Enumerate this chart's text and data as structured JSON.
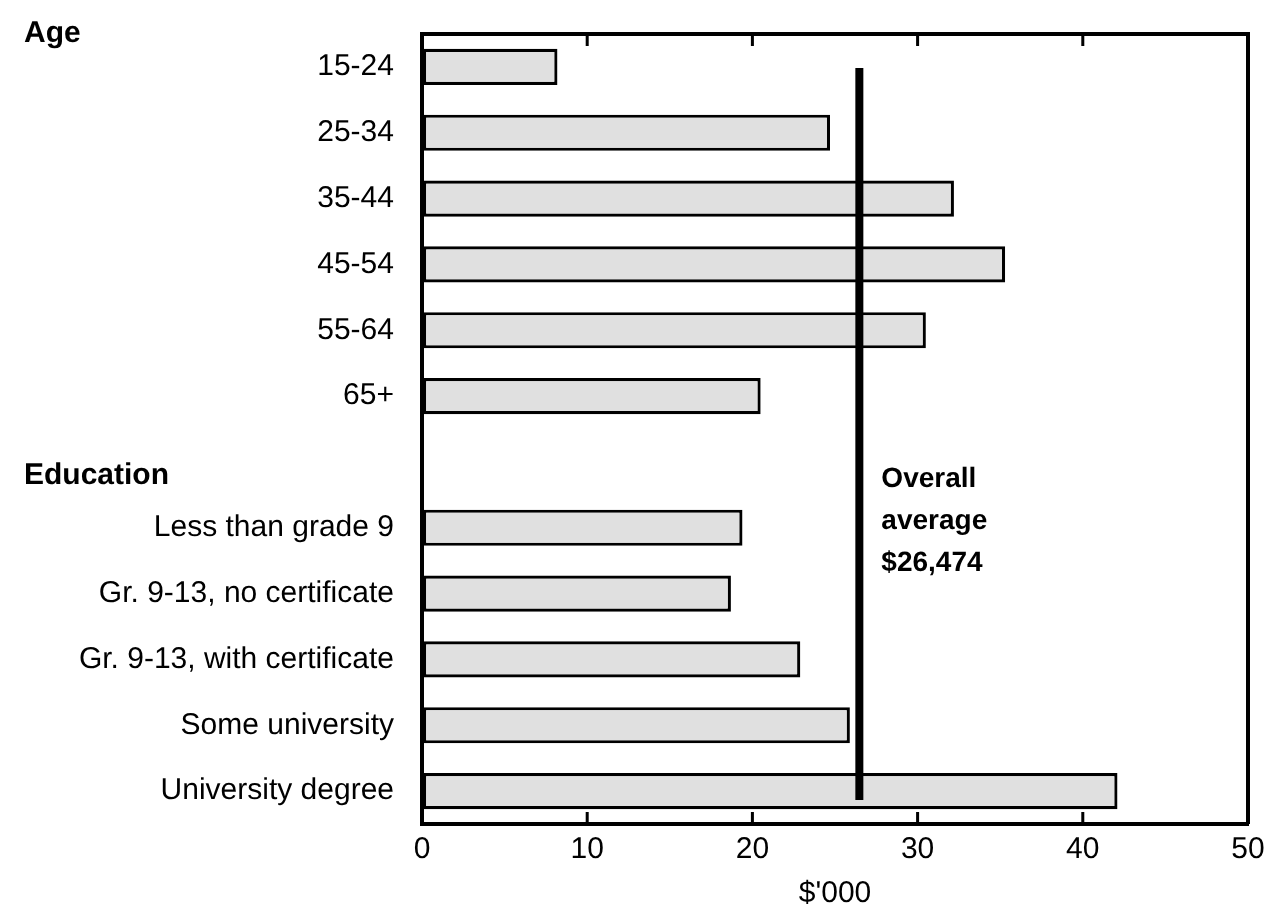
{
  "chart_data": {
    "type": "bar",
    "orientation": "horizontal",
    "xlabel": "$'000",
    "categories": [
      "15-24",
      "25-34",
      "35-44",
      "45-54",
      "55-64",
      "65+",
      null,
      "Less than grade 9",
      "Gr. 9-13, no certificate",
      "Gr. 9-13, with certificate",
      "Some university",
      "University degree"
    ],
    "values": [
      8.2,
      24.7,
      32.2,
      35.3,
      30.5,
      20.5,
      null,
      19.4,
      18.7,
      22.9,
      25.9,
      42.1
    ],
    "color": "#e0e0e0",
    "xlim": [
      0,
      50
    ],
    "xticks": [
      0,
      10,
      20,
      30,
      40,
      50
    ],
    "grid": false,
    "legend": false,
    "annotations": [
      "Age",
      "Education"
    ],
    "ref_lines": [
      {
        "axis": "x",
        "value": 26.474,
        "label": "Overall average $26,474",
        "color": "#000000"
      }
    ]
  }
}
